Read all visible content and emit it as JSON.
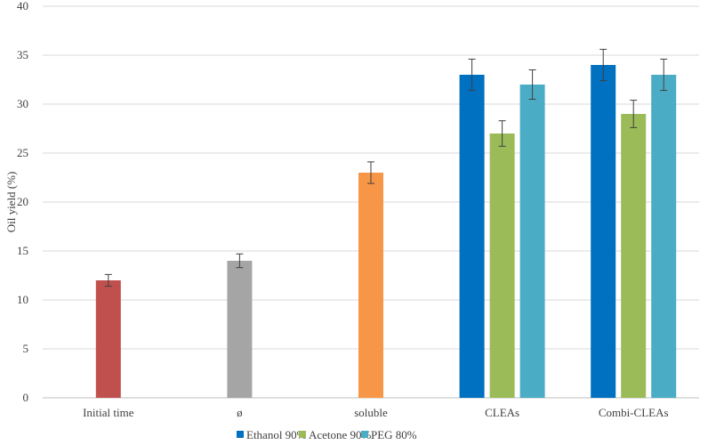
{
  "chart_data": {
    "type": "bar",
    "title": "",
    "xlabel": "",
    "ylabel": "Oil yield (%)",
    "ylim": [
      0,
      40
    ],
    "yticks": [
      0,
      5,
      10,
      15,
      20,
      25,
      30,
      35,
      40
    ],
    "grid": true,
    "legend_position": "bottom",
    "categories": [
      "Initial time",
      "ø",
      "soluble",
      "CLEAs",
      "Combi-CLEAs"
    ],
    "single_bars": [
      {
        "category": "Initial time",
        "value": 12,
        "error": 0.6,
        "color": "#c0504d"
      },
      {
        "category": "ø",
        "value": 14,
        "error": 0.7,
        "color": "#a5a5a5"
      },
      {
        "category": "soluble",
        "value": 23,
        "error": 1.1,
        "color": "#f79646"
      }
    ],
    "series": [
      {
        "name": "Ethanol 90%",
        "color": "#0070c0",
        "values": [
          null,
          null,
          null,
          33,
          34
        ],
        "errors": [
          null,
          null,
          null,
          1.6,
          1.6
        ]
      },
      {
        "name": "Acetone 90%",
        "color": "#9bbb59",
        "values": [
          null,
          null,
          null,
          27,
          29
        ],
        "errors": [
          null,
          null,
          null,
          1.3,
          1.4
        ]
      },
      {
        "name": "PEG 80%",
        "color": "#4bacc6",
        "values": [
          null,
          null,
          null,
          32,
          33
        ],
        "errors": [
          null,
          null,
          null,
          1.5,
          1.6
        ]
      }
    ]
  }
}
